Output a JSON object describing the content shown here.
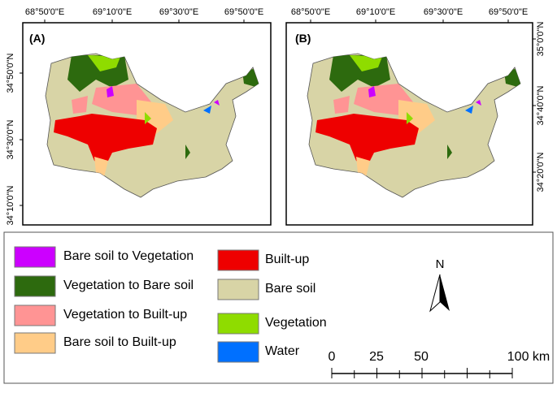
{
  "panels": [
    {
      "label": "(A)",
      "top_labels": [
        "68°50'0\"E",
        "69°10'0\"E",
        "69°30'0\"E",
        "69°50'0\"E"
      ],
      "side_labels": [
        "34°50'0\"N",
        "34°30'0\"N",
        "34°10'0\"N"
      ]
    },
    {
      "label": "(B)",
      "top_labels": [
        "68°50'0\"E",
        "69°10'0\"E",
        "69°30'0\"E",
        "69°50'0\"E"
      ],
      "side_labels": [
        "35°0'0\"N",
        "34°40'0\"N",
        "34°20'0\"N"
      ]
    }
  ],
  "legend": {
    "change_classes": [
      {
        "name": "Bare soil to Vegetation",
        "color": "#cc00ff"
      },
      {
        "name": "Vegetation to Bare soil",
        "color": "#2d6a0e"
      },
      {
        "name": "Vegetation to Built-up",
        "color": "#ff9494"
      },
      {
        "name": "Bare soil to Built-up",
        "color": "#ffcc88"
      }
    ],
    "classes": [
      {
        "name": "Built-up",
        "color": "#ee0000"
      },
      {
        "name": "Bare soil",
        "color": "#d8d4a6"
      },
      {
        "name": "Vegetation",
        "color": "#8fdc00"
      },
      {
        "name": "Water",
        "color": "#0070ff"
      }
    ]
  },
  "north_label": "N",
  "scale_bar": [
    "0",
    "25",
    "50",
    "100 km"
  ]
}
